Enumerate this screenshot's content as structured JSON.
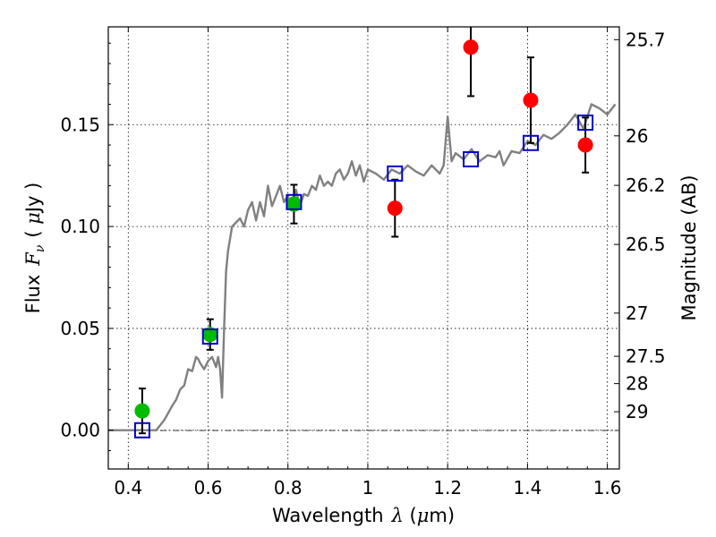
{
  "chart_data": {
    "type": "scatter",
    "xlabel_prefix": "Wavelength",
    "xlabel_symbol": "λ",
    "xlabel_unit_open": " (",
    "xlabel_unit_mu": "μ",
    "xlabel_unit_rest": "m)",
    "ylabel_prefix": "Flux",
    "ylabel_symbol": "F",
    "ylabel_sub": "ν",
    "ylabel_unit_open": "( ",
    "ylabel_unit_mu": "μ",
    "ylabel_unit_rest": "Jy )",
    "y2label": "Magnitude (AB)",
    "xlim": [
      0.35,
      1.63
    ],
    "ylim": [
      -0.019,
      0.198
    ],
    "grid": true,
    "xticks": [
      0.4,
      0.6,
      0.8,
      1.0,
      1.2,
      1.4,
      1.6
    ],
    "xtick_labels": [
      "0.4",
      "0.6",
      "0.8",
      "1",
      "1.2",
      "1.4",
      "1.6"
    ],
    "yticks": [
      0.0,
      0.05,
      0.1,
      0.15
    ],
    "ytick_labels": [
      "0.00",
      "0.05",
      "0.10",
      "0.15"
    ],
    "y2ticks": [
      {
        "label": "25.7",
        "flux": 0.1917
      },
      {
        "label": "26",
        "flux": 0.1445
      },
      {
        "label": "26.2",
        "flux": 0.1202
      },
      {
        "label": "26.5",
        "flux": 0.0912
      },
      {
        "label": "27",
        "flux": 0.0575
      },
      {
        "label": "27.5",
        "flux": 0.0363
      },
      {
        "label": "28",
        "flux": 0.0229
      },
      {
        "label": "29",
        "flux": 0.0091
      }
    ],
    "model_spectrum": {
      "color": "#808080",
      "x": [
        0.35,
        0.44,
        0.47,
        0.49,
        0.51,
        0.52,
        0.53,
        0.54,
        0.55,
        0.56,
        0.57,
        0.575,
        0.58,
        0.59,
        0.6,
        0.61,
        0.62,
        0.625,
        0.63,
        0.635,
        0.64,
        0.645,
        0.65,
        0.66,
        0.67,
        0.68,
        0.69,
        0.7,
        0.71,
        0.72,
        0.73,
        0.74,
        0.75,
        0.76,
        0.77,
        0.78,
        0.79,
        0.8,
        0.81,
        0.82,
        0.83,
        0.84,
        0.85,
        0.86,
        0.87,
        0.88,
        0.89,
        0.9,
        0.91,
        0.92,
        0.93,
        0.94,
        0.95,
        0.96,
        0.97,
        0.98,
        0.99,
        1.0,
        1.02,
        1.04,
        1.06,
        1.08,
        1.1,
        1.12,
        1.14,
        1.16,
        1.18,
        1.19,
        1.2,
        1.21,
        1.22,
        1.24,
        1.26,
        1.28,
        1.3,
        1.32,
        1.33,
        1.34,
        1.36,
        1.38,
        1.4,
        1.42,
        1.44,
        1.46,
        1.48,
        1.5,
        1.52,
        1.54,
        1.56,
        1.58,
        1.6,
        1.62
      ],
      "y": [
        0.0,
        0.0,
        0.0,
        0.005,
        0.012,
        0.015,
        0.02,
        0.022,
        0.03,
        0.029,
        0.036,
        0.035,
        0.033,
        0.03,
        0.034,
        0.036,
        0.031,
        0.036,
        0.03,
        0.016,
        0.05,
        0.078,
        0.088,
        0.1,
        0.102,
        0.104,
        0.1,
        0.108,
        0.112,
        0.103,
        0.112,
        0.105,
        0.12,
        0.11,
        0.115,
        0.12,
        0.112,
        0.115,
        0.108,
        0.118,
        0.11,
        0.116,
        0.115,
        0.12,
        0.118,
        0.125,
        0.12,
        0.122,
        0.12,
        0.126,
        0.128,
        0.123,
        0.126,
        0.132,
        0.125,
        0.13,
        0.122,
        0.128,
        0.126,
        0.123,
        0.128,
        0.126,
        0.13,
        0.127,
        0.125,
        0.13,
        0.126,
        0.13,
        0.154,
        0.132,
        0.136,
        0.133,
        0.138,
        0.132,
        0.135,
        0.134,
        0.137,
        0.13,
        0.137,
        0.136,
        0.142,
        0.14,
        0.145,
        0.143,
        0.146,
        0.15,
        0.155,
        0.148,
        0.16,
        0.158,
        0.155,
        0.16
      ]
    },
    "series": [
      {
        "marker": "circle",
        "color": "#00bb00",
        "x": [
          0.435,
          0.605,
          0.815
        ],
        "y": [
          0.0095,
          0.047,
          0.111
        ],
        "err": [
          0.011,
          0.0075,
          0.0095
        ]
      },
      {
        "marker": "circle",
        "color": "#ff0000",
        "x": [
          1.068,
          1.258,
          1.408,
          1.545
        ],
        "y": [
          0.109,
          0.188,
          0.162,
          0.14
        ],
        "err": [
          0.014,
          0.024,
          0.021,
          0.0135
        ]
      },
      {
        "marker": "square-open",
        "color": "#0000cc",
        "x": [
          0.435,
          0.605,
          0.815,
          1.068,
          1.258,
          1.408,
          1.545
        ],
        "y": [
          0.0,
          0.046,
          0.112,
          0.126,
          0.133,
          0.141,
          0.151
        ]
      }
    ]
  }
}
